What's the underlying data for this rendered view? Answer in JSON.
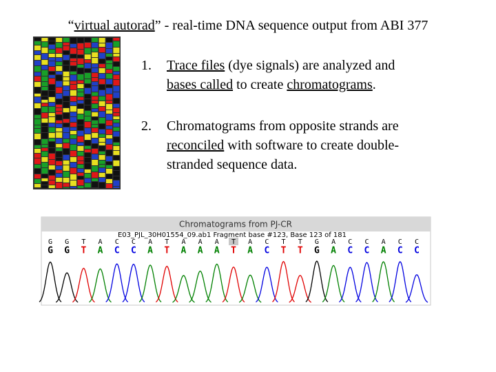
{
  "title": [
    {
      "text": "“"
    },
    {
      "text": "virtual autorad",
      "underline": true
    },
    {
      "text": "” - real-time DNA sequence output from ABI 377"
    }
  ],
  "list": [
    {
      "number": "1.",
      "lines": [
        [
          {
            "text": "Trace files",
            "underline": true
          },
          {
            "text": " (dye signals) are analyzed and"
          }
        ],
        [
          {
            "text": "bases called",
            "underline": true
          },
          {
            "text": " to create "
          },
          {
            "text": "chromatograms",
            "underline": true
          },
          {
            "text": "."
          }
        ]
      ]
    },
    {
      "number": "2.",
      "lines": [
        [
          {
            "text": "Chromatograms from opposite strands are"
          }
        ],
        [
          {
            "text": "reconciled",
            "underline": true
          },
          {
            "text": " with software to create double-"
          }
        ],
        [
          {
            "text": "stranded sequence data."
          }
        ]
      ]
    }
  ],
  "chromatogram": {
    "header": "Chromatograms from PJ-CR",
    "info": "E03_PJL_30H01554_09.ab1 Fragment base #123, Base 123 of 181",
    "top_bases": [
      "G",
      "G",
      "T",
      "A",
      "C",
      "C",
      "A",
      "T",
      "A",
      "A",
      "A",
      "T",
      "A",
      "C",
      "T",
      "T",
      "G",
      "A",
      "C",
      "C",
      "A",
      "C",
      "C"
    ],
    "bottom_bases": [
      "G",
      "G",
      "T",
      "A",
      "C",
      "C",
      "A",
      "T",
      "A",
      "A",
      "A",
      "T",
      "A",
      "C",
      "T",
      "T",
      "G",
      "A",
      "C",
      "C",
      "A",
      "C",
      "C"
    ],
    "highlighted_base": 11,
    "base_colors": {
      "G": "#000000",
      "A": "#008000",
      "T": "#e00000",
      "C": "#0000e0"
    }
  }
}
